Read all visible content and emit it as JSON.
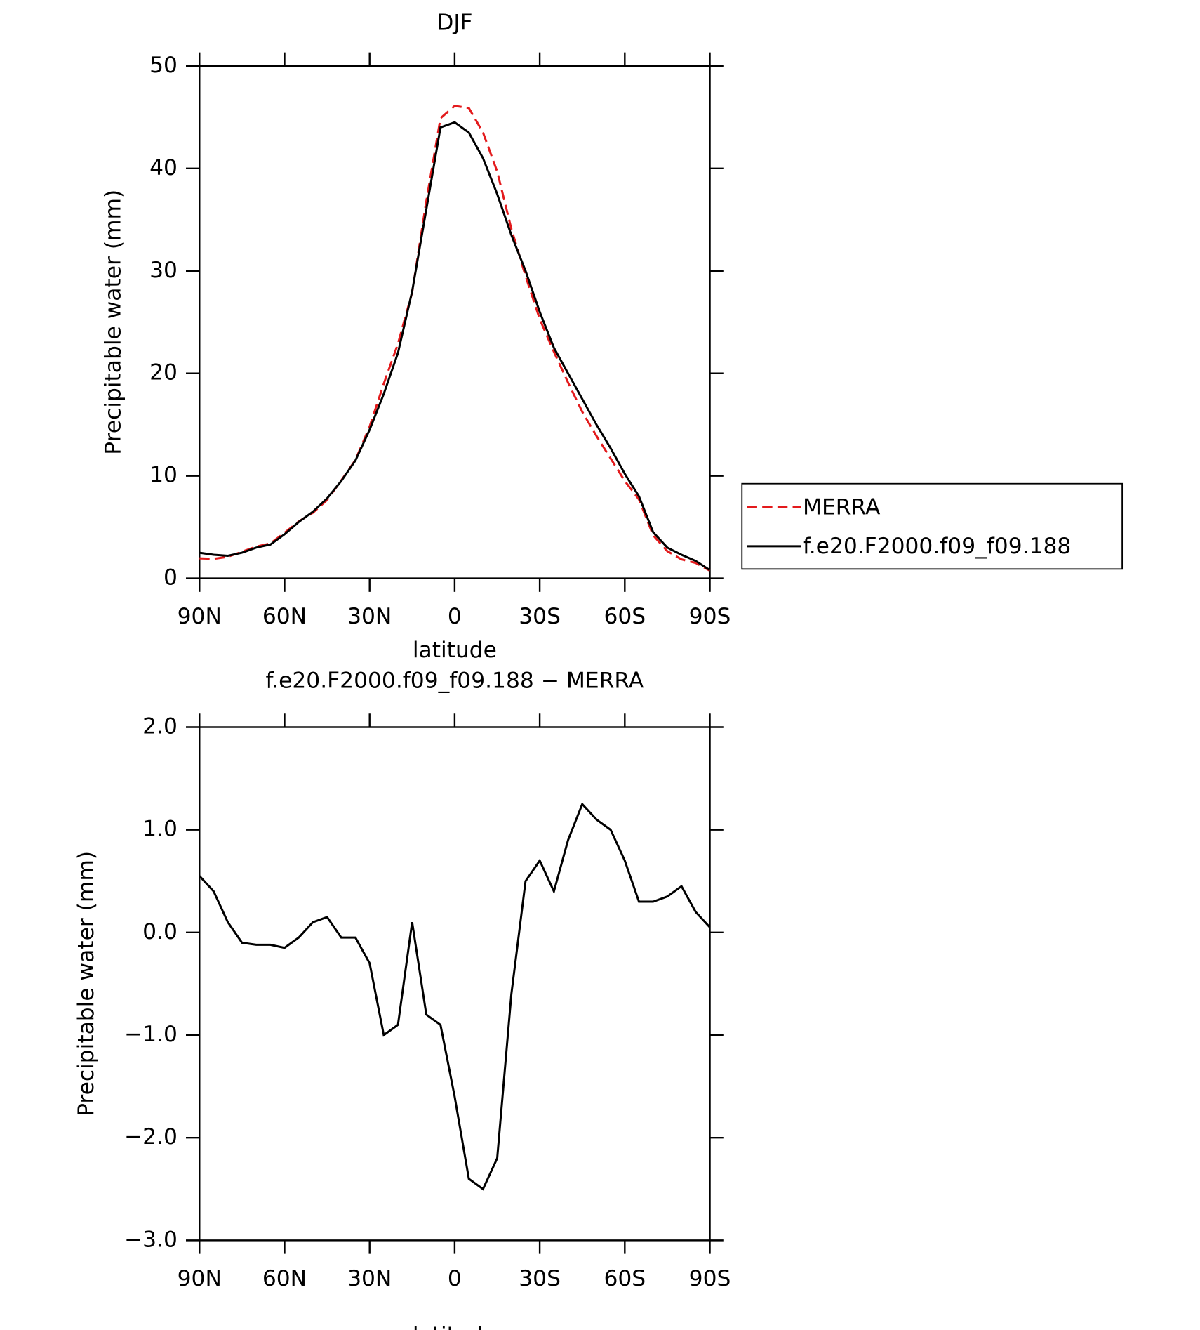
{
  "chart_data": [
    {
      "type": "line",
      "title": "DJF",
      "x_label": "latitude",
      "y_label": "Precipitable water (mm)",
      "x": [
        90,
        85,
        80,
        75,
        70,
        65,
        60,
        55,
        50,
        45,
        40,
        35,
        30,
        25,
        20,
        15,
        10,
        5,
        0,
        -5,
        -10,
        -15,
        -20,
        -25,
        -30,
        -35,
        -40,
        -45,
        -50,
        -55,
        -60,
        -65,
        -70,
        -75,
        -80,
        -85,
        -90
      ],
      "series": [
        {
          "name": "MERRA",
          "color": "#e31a1c",
          "dash": true,
          "values": [
            1.95,
            1.9,
            2.1,
            2.6,
            3.1,
            3.4,
            4.45,
            5.55,
            6.4,
            7.65,
            9.55,
            11.55,
            14.8,
            19,
            22.9,
            27.9,
            36.8,
            44.9,
            46.1,
            45.9,
            43.5,
            39.7,
            34.1,
            29.5,
            25.3,
            22.1,
            19.1,
            16.25,
            13.9,
            11.7,
            9.5,
            7.7,
            4.2,
            2.65,
            1.85,
            1.5,
            0.75
          ]
        },
        {
          "name": "f.e20.F2000.f09_f09.188",
          "color": "#000000",
          "dash": false,
          "values": [
            2.5,
            2.3,
            2.2,
            2.5,
            3.0,
            3.3,
            4.3,
            5.5,
            6.5,
            7.8,
            9.5,
            11.5,
            14.5,
            18,
            22,
            28,
            36,
            44,
            44.5,
            43.5,
            41,
            37.5,
            33.5,
            30,
            26,
            22.5,
            20,
            17.5,
            15,
            12.7,
            10.2,
            8,
            4.5,
            3,
            2.3,
            1.7,
            0.8
          ]
        }
      ],
      "xlim": [
        90,
        -90
      ],
      "xticks": [
        {
          "value": 90,
          "label": "90N"
        },
        {
          "value": 60,
          "label": "60N"
        },
        {
          "value": 30,
          "label": "30N"
        },
        0,
        {
          "value": -30,
          "label": "30S"
        },
        {
          "value": -60,
          "label": "60S"
        },
        {
          "value": -90,
          "label": "90S"
        }
      ],
      "ylim": [
        0,
        50
      ],
      "yticks": [
        0,
        10,
        20,
        30,
        40,
        50
      ],
      "legend": "outside-right"
    },
    {
      "type": "line",
      "title": "f.e20.F2000.f09_f09.188 − MERRA",
      "x_label": "latitude",
      "y_label": "Precipitable water (mm)",
      "x": [
        90,
        85,
        80,
        75,
        70,
        65,
        60,
        55,
        50,
        45,
        40,
        35,
        30,
        25,
        20,
        15,
        10,
        5,
        0,
        -5,
        -10,
        -15,
        -20,
        -25,
        -30,
        -35,
        -40,
        -45,
        -50,
        -55,
        -60,
        -65,
        -70,
        -75,
        -80,
        -85,
        -90
      ],
      "series": [
        {
          "color": "#000000",
          "dash": false,
          "values": [
            0.55,
            0.4,
            0.1,
            -0.1,
            -0.12,
            -0.12,
            -0.15,
            -0.05,
            0.1,
            0.15,
            -0.05,
            -0.05,
            -0.3,
            -1.0,
            -0.9,
            0.1,
            -0.8,
            -0.9,
            -1.6,
            -2.4,
            -2.5,
            -2.2,
            -0.6,
            0.5,
            0.7,
            0.4,
            0.9,
            1.25,
            1.1,
            1.0,
            0.7,
            0.3,
            0.3,
            0.35,
            0.45,
            0.2,
            0.05
          ]
        }
      ],
      "xlim": [
        90,
        -90
      ],
      "xticks": [
        {
          "value": 90,
          "label": "90N"
        },
        {
          "value": 60,
          "label": "60N"
        },
        {
          "value": 30,
          "label": "30N"
        },
        0,
        {
          "value": -30,
          "label": "30S"
        },
        {
          "value": -60,
          "label": "60S"
        },
        {
          "value": -90,
          "label": "90S"
        }
      ],
      "ylim": [
        -3,
        2
      ],
      "yticks": [
        {
          "value": -3,
          "label": "−3.0"
        },
        {
          "value": -2,
          "label": "−2.0"
        },
        {
          "value": -1,
          "label": "−1.0"
        },
        {
          "value": 0,
          "label": "0.0"
        },
        {
          "value": 1,
          "label": "1.0"
        },
        {
          "value": 2,
          "label": "2.0"
        }
      ]
    }
  ]
}
